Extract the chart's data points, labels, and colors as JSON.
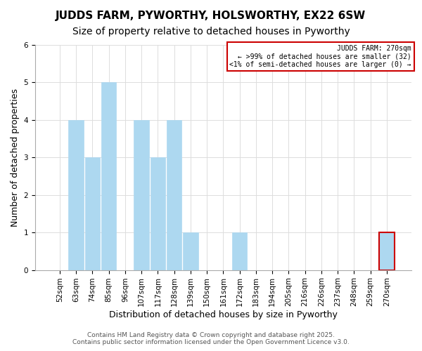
{
  "title": "JUDDS FARM, PYWORTHY, HOLSWORTHY, EX22 6SW",
  "subtitle": "Size of property relative to detached houses in Pyworthy",
  "xlabel": "Distribution of detached houses by size in Pyworthy",
  "ylabel": "Number of detached properties",
  "footer_lines": [
    "Contains HM Land Registry data © Crown copyright and database right 2025.",
    "Contains public sector information licensed under the Open Government Licence v3.0."
  ],
  "bins": [
    "52sqm",
    "63sqm",
    "74sqm",
    "85sqm",
    "96sqm",
    "107sqm",
    "117sqm",
    "128sqm",
    "139sqm",
    "150sqm",
    "161sqm",
    "172sqm",
    "183sqm",
    "194sqm",
    "205sqm",
    "216sqm",
    "226sqm",
    "237sqm",
    "248sqm",
    "259sqm",
    "270sqm"
  ],
  "values": [
    0,
    4,
    3,
    5,
    0,
    4,
    3,
    4,
    1,
    0,
    0,
    1,
    0,
    0,
    0,
    0,
    0,
    0,
    0,
    0,
    1
  ],
  "bar_color": "#add8f0",
  "bar_edge_color": "#add8f0",
  "highlight_bar_index": 20,
  "highlight_bar_edge_color": "#cc0000",
  "legend_box_edge_color": "#cc0000",
  "legend_title": "JUDDS FARM: 270sqm",
  "legend_line1": "← >99% of detached houses are smaller (32)",
  "legend_line2": "<1% of semi-detached houses are larger (0) →",
  "ylim": [
    0,
    6
  ],
  "yticks": [
    0,
    1,
    2,
    3,
    4,
    5,
    6
  ],
  "grid_color": "#dddddd",
  "bg_color": "#ffffff",
  "title_fontsize": 11,
  "subtitle_fontsize": 10,
  "axis_label_fontsize": 9,
  "tick_fontsize": 7.5,
  "footer_fontsize": 6.5
}
